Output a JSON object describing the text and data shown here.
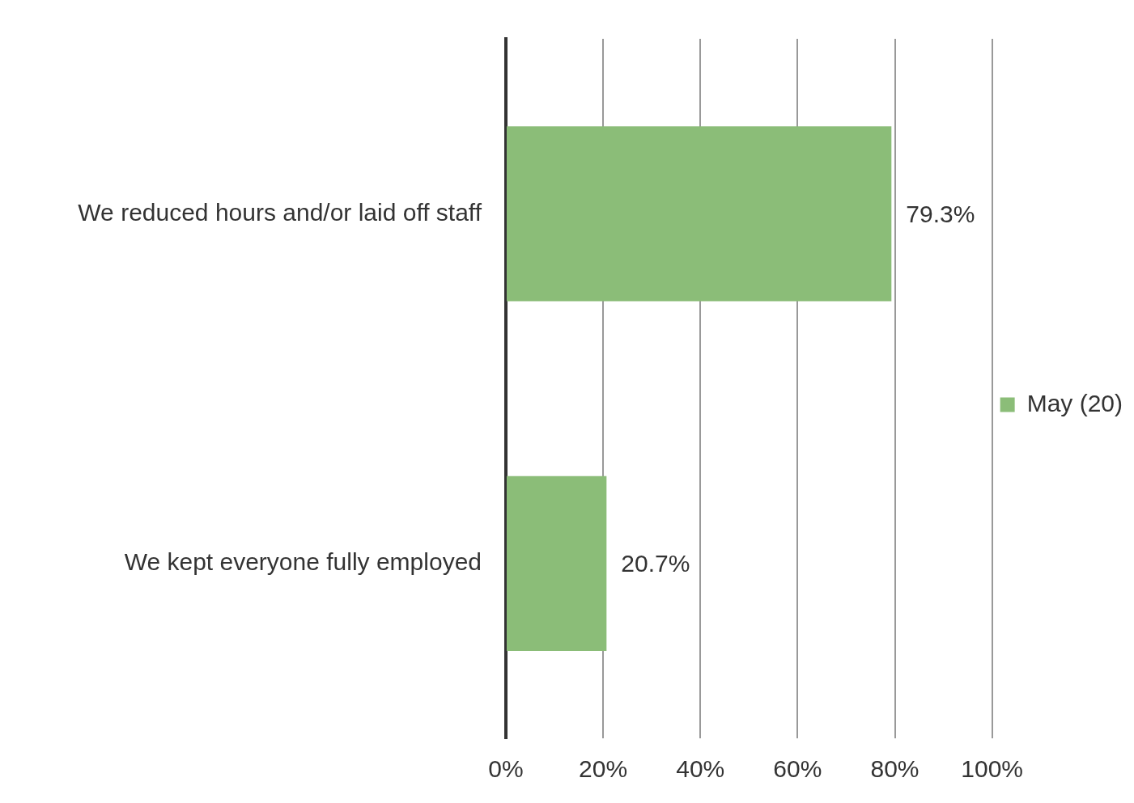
{
  "chart_data": {
    "type": "bar",
    "orientation": "horizontal",
    "categories": [
      "We reduced hours and/or laid off staff",
      "We kept everyone fully employed"
    ],
    "series": [
      {
        "name": "May (20)",
        "color": "#8bbd78",
        "values": [
          79.3,
          20.7
        ],
        "value_labels": [
          "79.3%",
          "20.7%"
        ]
      }
    ],
    "xlim": [
      0,
      100
    ],
    "xticks": [
      {
        "value": 0,
        "label": "0%"
      },
      {
        "value": 20,
        "label": "20%"
      },
      {
        "value": 40,
        "label": "40%"
      },
      {
        "value": 60,
        "label": "60%"
      },
      {
        "value": 80,
        "label": "80%"
      },
      {
        "value": 100,
        "label": "100%"
      }
    ],
    "grid": "x",
    "legend": "right"
  }
}
